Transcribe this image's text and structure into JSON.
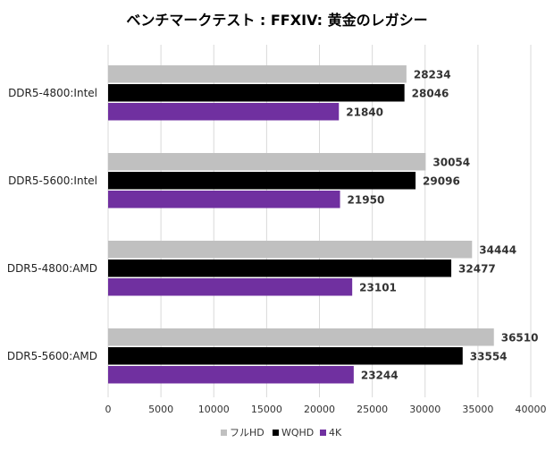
{
  "chart_data": {
    "type": "bar",
    "orientation": "horizontal",
    "title": "ベンチマークテスト : FFXIV: 黄金のレガシー",
    "xlabel": "",
    "ylabel": "",
    "xlim": [
      0,
      40000
    ],
    "x_ticks": [
      "0",
      "5000",
      "10000",
      "15000",
      "20000",
      "25000",
      "30000",
      "35000",
      "40000"
    ],
    "grid": "vertical",
    "legend_position": "bottom",
    "categories": [
      "DDR5-4800:Intel",
      "DDR5-5600:Intel",
      "DDR5-4800:AMD",
      "DDR5-5600:AMD"
    ],
    "series": [
      {
        "name": "フルHD",
        "color": "#c0c0c0",
        "values": [
          28234,
          30054,
          34444,
          36510
        ]
      },
      {
        "name": "WQHD",
        "color": "#000000",
        "values": [
          28046,
          29096,
          32477,
          33554
        ]
      },
      {
        "name": "4K",
        "color": "#7030a0",
        "values": [
          21840,
          21950,
          23101,
          23244
        ]
      }
    ]
  }
}
